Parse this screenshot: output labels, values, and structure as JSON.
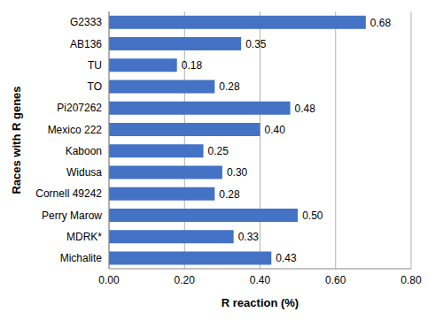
{
  "chart_data": {
    "type": "bar",
    "orientation": "horizontal",
    "x_label": "R reaction (%)",
    "y_label": "Races with R genes",
    "categories": [
      "G2333",
      "AB136",
      "TU",
      "TO",
      "Pi207262",
      "Mexico 222",
      "Kaboon",
      "Widusa",
      "Cornell 49242",
      "Perry Marow",
      "MDRK*",
      "Michalite"
    ],
    "values": [
      0.68,
      0.35,
      0.18,
      0.28,
      0.48,
      0.4,
      0.25,
      0.3,
      0.28,
      0.5,
      0.33,
      0.43
    ],
    "value_labels": [
      "0.68",
      "0.35",
      "0.18",
      "0.28",
      "0.48",
      "0.40",
      "0.25",
      "0.30",
      "0.28",
      "0.50",
      "0.33",
      "0.43"
    ],
    "color": "#4472c4",
    "xlim": [
      0,
      0.8
    ],
    "xticks": [
      {
        "value": 0,
        "label": "0.00"
      },
      {
        "value": 0.2,
        "label": "0.20"
      },
      {
        "value": 0.4,
        "label": "0.40"
      },
      {
        "value": 0.6,
        "label": "0.60"
      },
      {
        "value": 0.8,
        "label": "0.80"
      }
    ],
    "grid": true,
    "data_labels": true
  }
}
